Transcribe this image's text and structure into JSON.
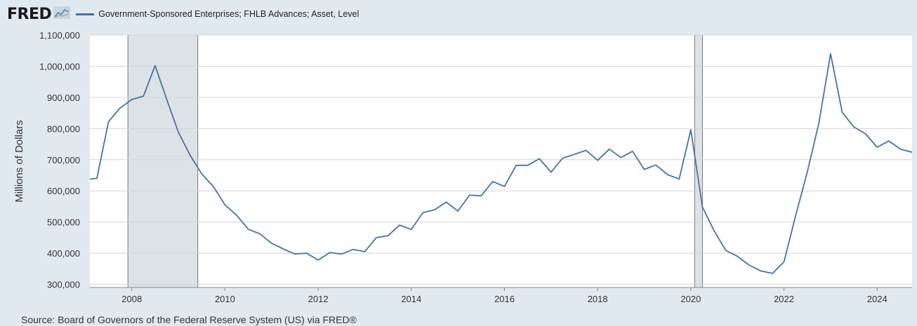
{
  "header": {
    "logo_text": "FRED",
    "logo_icon": "line-chart-icon"
  },
  "colors": {
    "line": "#4572a7",
    "recession": "#dde2e7",
    "background": "#e1e9f0"
  },
  "source": "Source: Board of Governors of the Federal Reserve System (US) via FRED®",
  "chart_data": {
    "type": "line",
    "title": "",
    "xlabel": "",
    "ylabel": "Millions of Dollars",
    "xlim": [
      2007.1,
      2024.75
    ],
    "ylim": [
      290000,
      1100000
    ],
    "grid": true,
    "legend": "top-left",
    "y_ticks": [
      300000,
      400000,
      500000,
      600000,
      700000,
      800000,
      900000,
      1000000,
      1100000
    ],
    "y_tick_labels": [
      "300,000",
      "400,000",
      "500,000",
      "600,000",
      "700,000",
      "800,000",
      "900,000",
      "1,000,000",
      "1,100,000"
    ],
    "x_ticks": [
      2008,
      2010,
      2012,
      2014,
      2016,
      2018,
      2020,
      2022,
      2024
    ],
    "x_tick_labels": [
      "2008",
      "2010",
      "2012",
      "2014",
      "2016",
      "2018",
      "2020",
      "2022",
      "2024"
    ],
    "recessions": [
      {
        "start": "2007-12",
        "end": "2009-06"
      },
      {
        "start": "2020-02",
        "end": "2020-04"
      }
    ],
    "series": [
      {
        "name": "Government-Sponsored Enterprises; FHLB Advances; Asset, Level",
        "x": [
          2007.0,
          2007.25,
          2007.5,
          2007.75,
          2008.0,
          2008.25,
          2008.5,
          2008.75,
          2009.0,
          2009.25,
          2009.5,
          2009.75,
          2010.0,
          2010.25,
          2010.5,
          2010.75,
          2011.0,
          2011.25,
          2011.5,
          2011.75,
          2012.0,
          2012.25,
          2012.5,
          2012.75,
          2013.0,
          2013.25,
          2013.5,
          2013.75,
          2014.0,
          2014.25,
          2014.5,
          2014.75,
          2015.0,
          2015.25,
          2015.5,
          2015.75,
          2016.0,
          2016.25,
          2016.5,
          2016.75,
          2017.0,
          2017.25,
          2017.5,
          2017.75,
          2018.0,
          2018.25,
          2018.5,
          2018.75,
          2019.0,
          2019.25,
          2019.5,
          2019.75,
          2020.0,
          2020.25,
          2020.5,
          2020.75,
          2021.0,
          2021.25,
          2021.5,
          2021.75,
          2022.0,
          2022.25,
          2022.5,
          2022.75,
          2023.0,
          2023.25,
          2023.5,
          2023.75,
          2024.0,
          2024.25,
          2024.5,
          2024.75
        ],
        "y": [
          636000,
          640000,
          822000,
          866000,
          893000,
          904000,
          1002000,
          893000,
          788000,
          715000,
          655000,
          614000,
          555000,
          522000,
          477000,
          462000,
          432000,
          414000,
          397000,
          400000,
          378000,
          402000,
          397000,
          412000,
          405000,
          450000,
          456000,
          490000,
          476000,
          530000,
          539000,
          564000,
          535000,
          586000,
          584000,
          630000,
          614000,
          682000,
          682000,
          703000,
          660000,
          705000,
          717000,
          730000,
          698000,
          734000,
          707000,
          727000,
          669000,
          683000,
          652000,
          638000,
          796000,
          548000,
          472000,
          409000,
          390000,
          362000,
          343000,
          335000,
          372000,
          520000,
          660000,
          818000,
          1040000,
          852000,
          805000,
          783000,
          740000,
          760000,
          734000,
          724000
        ]
      }
    ]
  }
}
